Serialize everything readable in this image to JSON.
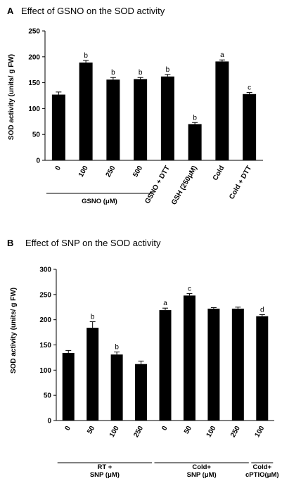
{
  "chart_data": [
    {
      "panel": "A",
      "type": "bar",
      "title": "Effect of GSNO on the SOD activity",
      "ylabel": "SOD activity (units/ g FW)",
      "xlabel": "",
      "ylim": [
        0,
        250
      ],
      "yticks": [
        0,
        50,
        100,
        150,
        200,
        250
      ],
      "categories": [
        "0",
        "100",
        "250",
        "500",
        "GSNO + DTT",
        "GSH (250μM)",
        "Cold",
        "Cold + DTT"
      ],
      "values": [
        127,
        189,
        156,
        157,
        162,
        70,
        191,
        128
      ],
      "errors": [
        5,
        4,
        4,
        3,
        4,
        3,
        3,
        3
      ],
      "significance": [
        "",
        "b",
        "b",
        "b",
        "b",
        "b",
        "a",
        "c"
      ],
      "groups": [
        {
          "label": "GSNO (μM)",
          "from": 0,
          "to": 3
        }
      ],
      "grid": false,
      "legend": "none"
    },
    {
      "panel": "B",
      "type": "bar",
      "title": "Effect of SNP on the SOD activity",
      "ylabel": "SOD activity (units/ g FW)",
      "xlabel": "",
      "ylim": [
        0,
        300
      ],
      "yticks": [
        0,
        50,
        100,
        150,
        200,
        250,
        300
      ],
      "categories": [
        "0",
        "50",
        "100",
        "250",
        "0",
        "50",
        "100",
        "250",
        "100"
      ],
      "values": [
        134,
        184,
        131,
        112,
        219,
        248,
        222,
        222,
        207
      ],
      "errors": [
        5,
        12,
        5,
        6,
        4,
        4,
        2,
        3,
        3
      ],
      "significance": [
        "",
        "b",
        "b",
        "",
        "a",
        "c",
        "",
        "",
        "d"
      ],
      "groups": [
        {
          "label_lines": [
            "RT +",
            "SNP (μM)"
          ],
          "from": 0,
          "to": 3
        },
        {
          "label_lines": [
            "Cold+",
            "SNP (μM)"
          ],
          "from": 4,
          "to": 7
        },
        {
          "label_lines": [
            "Cold+",
            "cPTIO(μM)"
          ],
          "from": 8,
          "to": 8
        }
      ],
      "grid": false,
      "legend": "none"
    }
  ]
}
